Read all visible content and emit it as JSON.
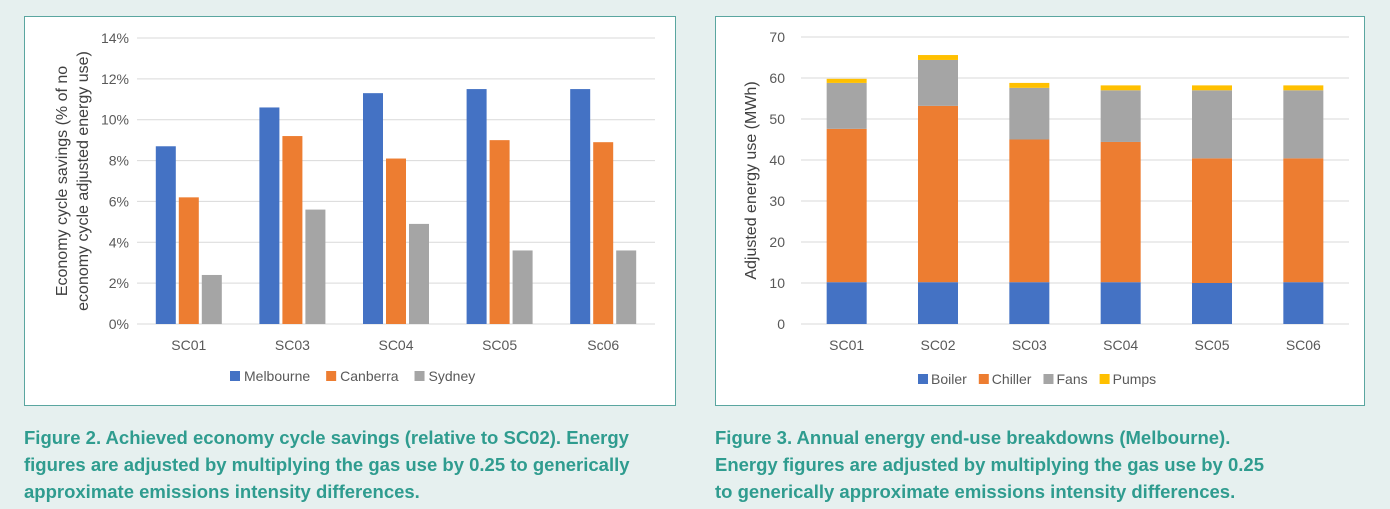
{
  "chart_data": [
    {
      "type": "bar",
      "ylabel_lines": [
        "Economy cycle savings (% of no",
        "economy cycle adjusted energy use)"
      ],
      "categories": [
        "SC01",
        "SC03",
        "SC04",
        "SC05",
        "Sc06"
      ],
      "series": [
        {
          "name": "Melbourne",
          "color": "#4472c4",
          "values": [
            8.7,
            10.6,
            11.3,
            11.5,
            11.5
          ]
        },
        {
          "name": "Canberra",
          "color": "#ed7d31",
          "values": [
            6.2,
            9.2,
            8.1,
            9.0,
            8.9
          ]
        },
        {
          "name": "Sydney",
          "color": "#a5a5a5",
          "values": [
            2.4,
            5.6,
            4.9,
            3.6,
            3.6
          ]
        }
      ],
      "ylim": [
        0,
        14
      ],
      "yticks": [
        "0%",
        "2%",
        "4%",
        "6%",
        "8%",
        "10%",
        "12%",
        "14%"
      ],
      "legend_position": "bottom",
      "grid": true
    },
    {
      "type": "stacked-bar",
      "ylabel": "Adjusted energy use (MWh)",
      "categories": [
        "SC01",
        "SC02",
        "SC03",
        "SC04",
        "SC05",
        "SC06"
      ],
      "series": [
        {
          "name": "Boiler",
          "color": "#4472c4",
          "values": [
            10.2,
            10.2,
            10.2,
            10.2,
            10.0,
            10.2
          ]
        },
        {
          "name": "Chiller",
          "color": "#ed7d31",
          "values": [
            37.4,
            43.0,
            34.8,
            34.2,
            30.4,
            30.2
          ]
        },
        {
          "name": "Fans",
          "color": "#a5a5a5",
          "values": [
            11.2,
            11.2,
            12.6,
            12.6,
            16.6,
            16.6
          ]
        },
        {
          "name": "Pumps",
          "color": "#ffc000",
          "values": [
            1.0,
            1.2,
            1.2,
            1.2,
            1.2,
            1.2
          ]
        }
      ],
      "ylim": [
        0,
        70
      ],
      "yticks": [
        "0",
        "10",
        "20",
        "30",
        "40",
        "50",
        "60",
        "70"
      ],
      "legend_position": "bottom",
      "grid": true
    }
  ],
  "captions": {
    "left": [
      "Figure 2. Achieved economy cycle savings (relative to SC02). Energy",
      "figures are adjusted by multiplying the gas use by 0.25 to generically",
      "approximate emissions intensity differences."
    ],
    "right": [
      "Figure 3. Annual energy end-use breakdowns (Melbourne).",
      "Energy figures are adjusted by multiplying the gas use by 0.25",
      "to generically approximate emissions intensity differences."
    ]
  }
}
